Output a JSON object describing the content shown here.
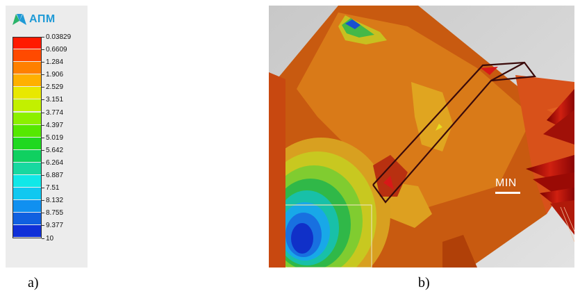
{
  "legend": {
    "logo_text": "АПМ",
    "ticks": [
      "0.03829",
      "0.6609",
      "1.284",
      "1.906",
      "2.529",
      "3.151",
      "3.774",
      "4.397",
      "5.019",
      "5.642",
      "6.264",
      "6.887",
      "7.51",
      "8.132",
      "8.755",
      "9.377",
      "10"
    ],
    "colors": [
      "#ff1a00",
      "#ff4a00",
      "#ff8000",
      "#ffb000",
      "#e8e800",
      "#c2f000",
      "#8cf000",
      "#55e800",
      "#20d820",
      "#10d060",
      "#18d8a0",
      "#10e8e8",
      "#10c8f0",
      "#1090f0",
      "#1060e0",
      "#1030d8",
      "#0000e0"
    ]
  },
  "render": {
    "min_label": "MIN"
  },
  "captions": {
    "a": "a)",
    "b": "b)"
  }
}
